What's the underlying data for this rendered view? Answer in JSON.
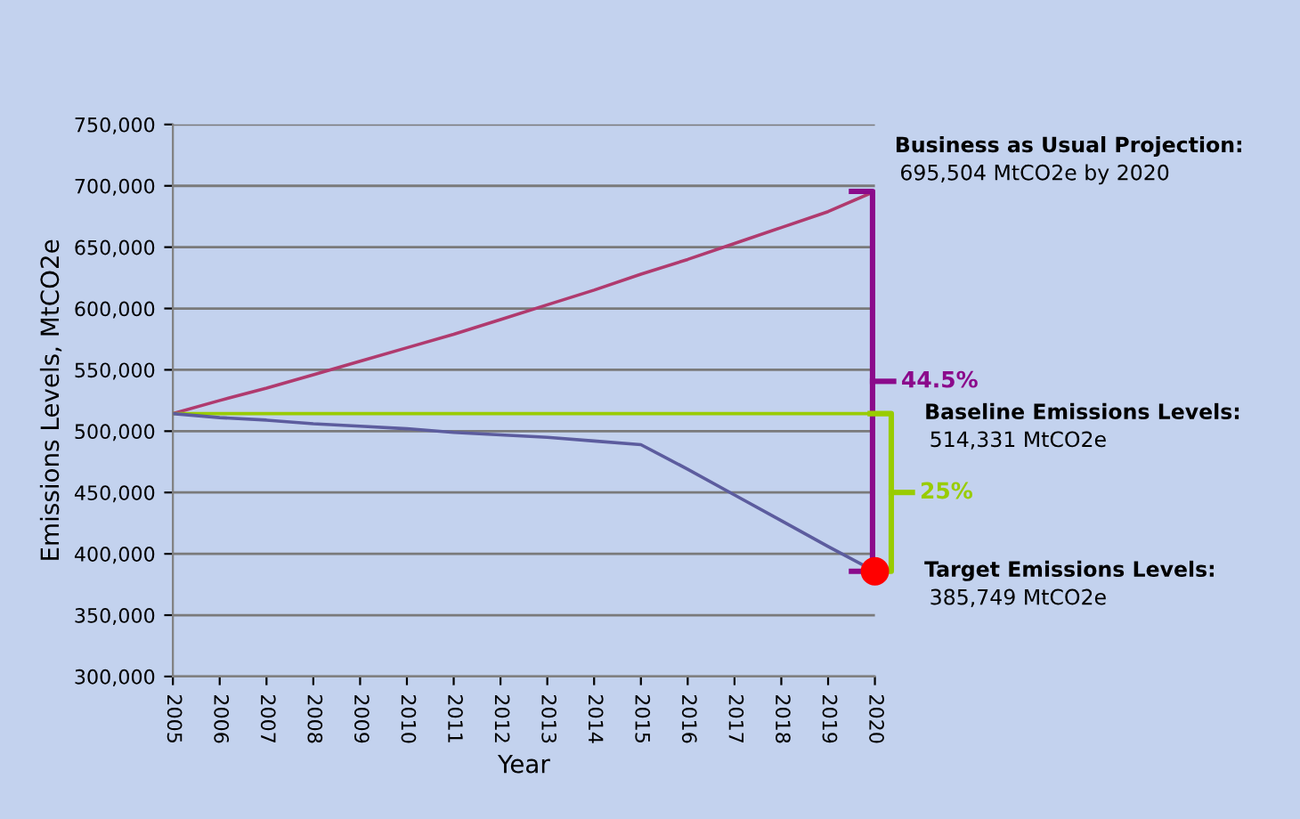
{
  "chart_data": {
    "type": "line",
    "xlabel": "Year",
    "ylabel": "Emissions Levels, MtCO2e",
    "x": [
      2005,
      2006,
      2007,
      2008,
      2009,
      2010,
      2011,
      2012,
      2013,
      2014,
      2015,
      2016,
      2017,
      2018,
      2019,
      2020
    ],
    "series": [
      {
        "color": "#b03a6e",
        "values": [
          514331,
          525000,
          535000,
          546000,
          557000,
          568000,
          579000,
          591000,
          603000,
          615000,
          628000,
          640000,
          653000,
          666000,
          679000,
          695504
        ]
      },
      {
        "color": "#99cc00",
        "values": [
          514331,
          514331,
          514331,
          514331,
          514331,
          514331,
          514331,
          514331,
          514331,
          514331,
          514331,
          514331,
          514331,
          514331,
          514331,
          514331
        ]
      },
      {
        "color": "#5c5c9e",
        "values": [
          514331,
          511000,
          509000,
          506000,
          504000,
          502000,
          499000,
          497000,
          495000,
          492000,
          489000,
          469000,
          448000,
          427000,
          406000,
          385749
        ]
      },
      {
        "type": "scatter",
        "color": "#ff0000",
        "marker": "circle",
        "x": [
          2020
        ],
        "values": [
          385749
        ]
      }
    ],
    "xlim": [
      2005,
      2020
    ],
    "ylim": [
      300000,
      750000
    ],
    "xticks": [
      2005,
      2006,
      2007,
      2008,
      2009,
      2010,
      2011,
      2012,
      2013,
      2014,
      2015,
      2016,
      2017,
      2018,
      2019,
      2020
    ],
    "yticks": [
      {
        "value": 300000,
        "label": "300,000"
      },
      {
        "value": 350000,
        "label": "350,000"
      },
      {
        "value": 400000,
        "label": "400,000"
      },
      {
        "value": 450000,
        "label": "450,000"
      },
      {
        "value": 500000,
        "label": "500,000"
      },
      {
        "value": 550000,
        "label": "550,000"
      },
      {
        "value": 600000,
        "label": "600,000"
      },
      {
        "value": 650000,
        "label": "650,000"
      },
      {
        "value": 700000,
        "label": "700,000"
      },
      {
        "value": 750000,
        "label": "750,000"
      }
    ],
    "grid": "y",
    "line_style": "solid",
    "annotations": [
      "Business as Usual Projection:\n695,504 MtCO2e by 2020",
      "Baseline Emissions Levels:\n514,331 MtCO2e",
      "Target Emissions Levels:\n385,749 MtCO2e",
      "44.5%",
      "25%"
    ]
  }
}
